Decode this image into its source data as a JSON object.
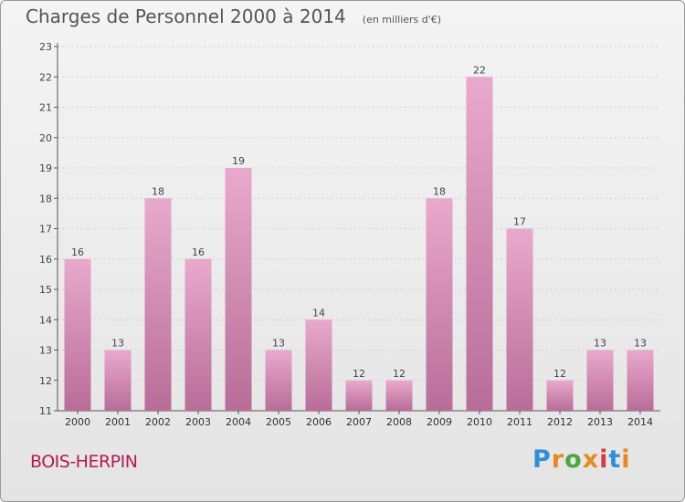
{
  "header": {
    "title": "Charges de Personnel 2000 à 2014",
    "subtitle": "(en milliers d'€)"
  },
  "footer": {
    "town": "BOIS-HERPIN",
    "logo": "Proxiti"
  },
  "colors": {
    "bar_light": "#e9a9cd",
    "bar_dark": "#b86d98",
    "town_text": "#b5194f"
  },
  "chart_data": {
    "type": "bar",
    "title": "Charges de Personnel 2000 à 2014",
    "subtitle": "(en milliers d'€)",
    "xlabel": "",
    "ylabel": "",
    "categories": [
      "2000",
      "2001",
      "2002",
      "2003",
      "2004",
      "2005",
      "2006",
      "2007",
      "2008",
      "2009",
      "2010",
      "2011",
      "2012",
      "2013",
      "2014"
    ],
    "values": [
      16,
      13,
      18,
      16,
      19,
      13,
      14,
      12,
      12,
      18,
      22,
      17,
      12,
      13,
      13
    ],
    "ylim": [
      11,
      23
    ],
    "yticks": [
      11,
      12,
      13,
      14,
      15,
      16,
      17,
      18,
      19,
      20,
      21,
      22,
      23
    ],
    "grid": true,
    "data_labels": true
  }
}
